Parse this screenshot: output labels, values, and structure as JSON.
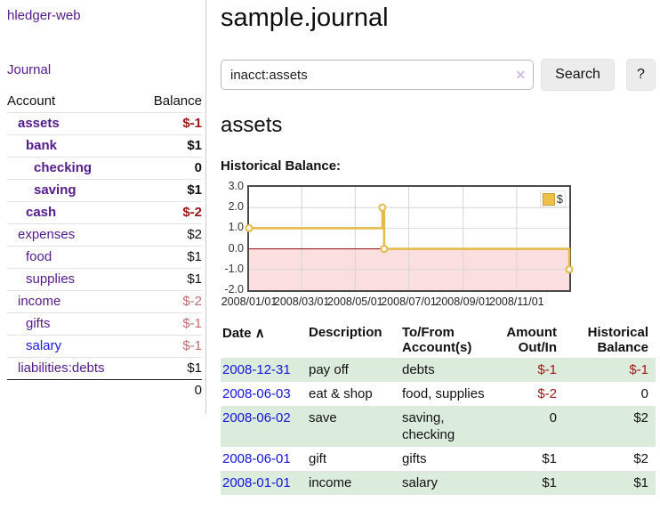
{
  "app": {
    "title": "hledger-web"
  },
  "sidebar": {
    "journal_label": "Journal",
    "accounts_table": {
      "headers": {
        "account": "Account",
        "balance": "Balance"
      },
      "rows": [
        {
          "name": "assets",
          "balance": "$-1",
          "level": 0,
          "bold": true,
          "link_color": "purple",
          "balance_color": "neg-strong"
        },
        {
          "name": "bank",
          "balance": "$1",
          "level": 1,
          "bold": true,
          "link_color": "purple",
          "balance_color": "default"
        },
        {
          "name": "checking",
          "balance": "0",
          "level": 2,
          "bold": true,
          "link_color": "purple",
          "balance_color": "default"
        },
        {
          "name": "saving",
          "balance": "$1",
          "level": 2,
          "bold": true,
          "link_color": "purple",
          "balance_color": "default"
        },
        {
          "name": "cash",
          "balance": "$-2",
          "level": 1,
          "bold": true,
          "link_color": "purple",
          "balance_color": "neg-strong"
        },
        {
          "name": "expenses",
          "balance": "$2",
          "level": 0,
          "bold": false,
          "link_color": "purple",
          "balance_color": "default"
        },
        {
          "name": "food",
          "balance": "$1",
          "level": 1,
          "bold": false,
          "link_color": "purple",
          "balance_color": "default"
        },
        {
          "name": "supplies",
          "balance": "$1",
          "level": 1,
          "bold": false,
          "link_color": "purple",
          "balance_color": "default"
        },
        {
          "name": "income",
          "balance": "$-2",
          "level": 0,
          "bold": false,
          "link_color": "purple",
          "balance_color": "neg-weak"
        },
        {
          "name": "gifts",
          "balance": "$-1",
          "level": 1,
          "bold": false,
          "link_color": "purple",
          "balance_color": "neg-weak"
        },
        {
          "name": "salary",
          "balance": "$-1",
          "level": 1,
          "bold": false,
          "link_color": "blue",
          "balance_color": "neg-weak"
        },
        {
          "name": "liabilities:debts",
          "balance": "$1",
          "level": 0,
          "bold": false,
          "link_color": "purple",
          "balance_color": "default"
        }
      ],
      "total": "0"
    }
  },
  "main": {
    "title": "sample.journal",
    "search": {
      "value": "inacct:assets",
      "clear_icon": "✕",
      "button_label": "Search",
      "help_label": "?"
    },
    "account_heading": "assets",
    "chart_label": "Historical Balance:"
  },
  "chart_data": {
    "type": "line",
    "step": true,
    "title": "Historical Balance:",
    "series": [
      {
        "name": "$",
        "color": "#e6ba48",
        "points": [
          [
            "2008-01-01",
            1
          ],
          [
            "2008-06-01",
            2
          ],
          [
            "2008-06-03",
            0
          ],
          [
            "2008-12-31",
            -1
          ]
        ]
      }
    ],
    "x_range": [
      "2008-01-01",
      "2008-12-31"
    ],
    "ylim": [
      -2,
      3
    ],
    "y_ticks": [
      {
        "v": 3,
        "label": "3.0"
      },
      {
        "v": 2,
        "label": "2.0"
      },
      {
        "v": 1,
        "label": "1.0"
      },
      {
        "v": 0,
        "label": "0.0"
      },
      {
        "v": -1,
        "label": "-1.0"
      },
      {
        "v": -2,
        "label": "-2.0"
      }
    ],
    "x_ticks": [
      {
        "date": "2008-01-01",
        "label": "2008/01/01"
      },
      {
        "date": "2008-03-01",
        "label": "2008/03/01"
      },
      {
        "date": "2008-05-01",
        "label": "2008/05/01"
      },
      {
        "date": "2008-07-01",
        "label": "2008/07/01"
      },
      {
        "date": "2008-09-01",
        "label": "2008/09/01"
      },
      {
        "date": "2008-11-01",
        "label": "2008/11/01"
      }
    ],
    "grid": true,
    "negative_fill": "#fbdfdf",
    "zero_line_color": "#8f0e0e",
    "grid_color": "#d6d6d6",
    "legend": {
      "label": "$",
      "position": "top-right"
    }
  },
  "register": {
    "headers": {
      "date": "Date",
      "sort_indicator": "∧",
      "description": "Description",
      "accounts": "To/From Account(s)",
      "amount": "Amount Out/In",
      "balance": "Historical Balance"
    },
    "rows": [
      {
        "date": "2008-12-31",
        "description": "pay off",
        "accounts": "debts",
        "amount": "$-1",
        "amount_color": "neg-strong",
        "balance": "$-1",
        "balance_color": "neg-strong",
        "shaded": true
      },
      {
        "date": "2008-06-03",
        "description": "eat & shop",
        "accounts": "food, supplies",
        "amount": "$-2",
        "amount_color": "neg-strong",
        "balance": "0",
        "balance_color": "default",
        "shaded": false
      },
      {
        "date": "2008-06-02",
        "description": "save",
        "accounts": "saving, checking",
        "amount": "0",
        "amount_color": "default",
        "balance": "$2",
        "balance_color": "default",
        "shaded": true
      },
      {
        "date": "2008-06-01",
        "description": "gift",
        "accounts": "gifts",
        "amount": "$1",
        "amount_color": "default",
        "balance": "$2",
        "balance_color": "default",
        "shaded": false
      },
      {
        "date": "2008-01-01",
        "description": "income",
        "accounts": "salary",
        "amount": "$1",
        "amount_color": "default",
        "balance": "$1",
        "balance_color": "default",
        "shaded": true
      }
    ]
  }
}
